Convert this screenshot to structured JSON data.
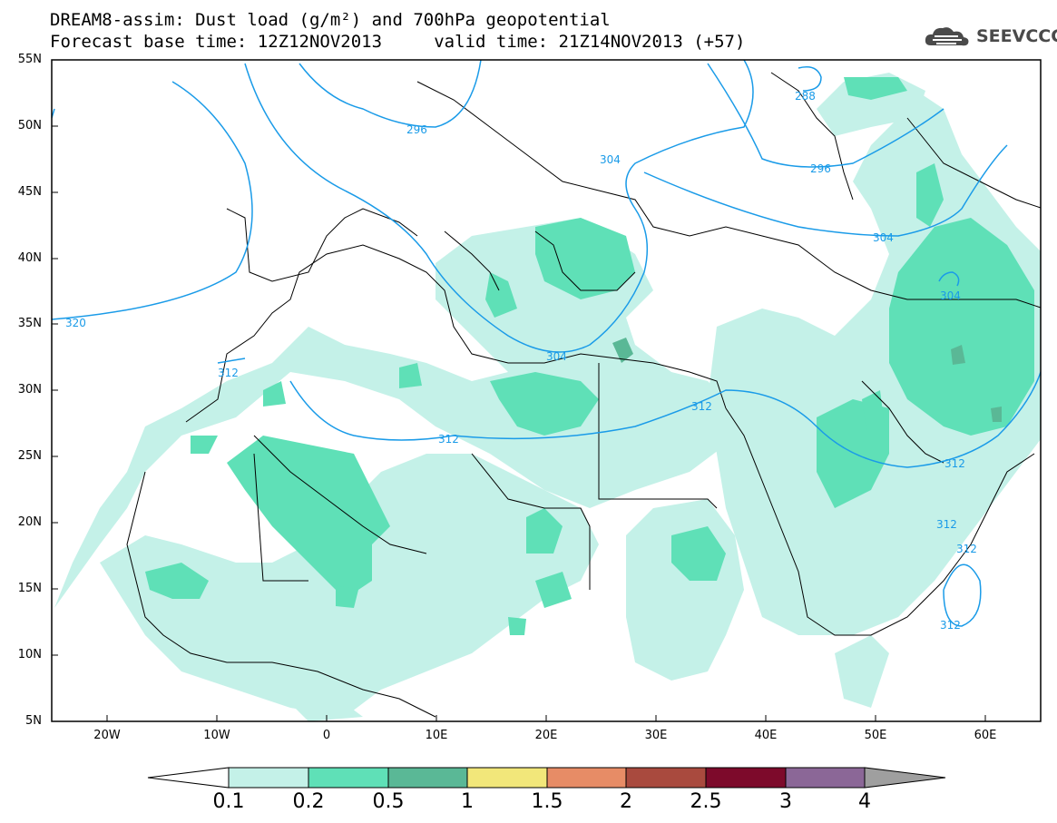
{
  "title": {
    "line1": "DREAM8-assim: Dust load (g/m²) and 700hPa geopotential",
    "line2": "Forecast base time: 12Z12NOV2013     valid time: 21Z14NOV2013 (+57)"
  },
  "logo": {
    "icon": "cloud-logo-icon",
    "text": "SEEVCCC"
  },
  "map": {
    "lon_range": [
      -25,
      65
    ],
    "lat_range": [
      5,
      55
    ],
    "lat_ticks": [
      "55N",
      "50N",
      "45N",
      "40N",
      "35N",
      "30N",
      "25N",
      "20N",
      "15N",
      "10N",
      "5N"
    ],
    "lon_ticks": [
      "20W",
      "10W",
      "0",
      "10E",
      "20E",
      "30E",
      "40E",
      "50E",
      "60E"
    ],
    "contour_labels": [
      "288",
      "296",
      "296",
      "304",
      "304",
      "304",
      "304",
      "312",
      "312",
      "312",
      "312",
      "312",
      "312",
      "312",
      "320"
    ],
    "contour_color": "#1a9be8",
    "coast_color": "#000000"
  },
  "colorbar": {
    "labels": [
      "0.1",
      "0.2",
      "0.5",
      "1",
      "1.5",
      "2",
      "2.5",
      "3",
      "4"
    ],
    "colors": [
      "#ffffff",
      "#c4f1e8",
      "#5fe0b7",
      "#5ab896",
      "#f2e77a",
      "#e78c66",
      "#a94a3e",
      "#7d0a2b",
      "#8b6797",
      "#9f9f9f"
    ]
  }
}
